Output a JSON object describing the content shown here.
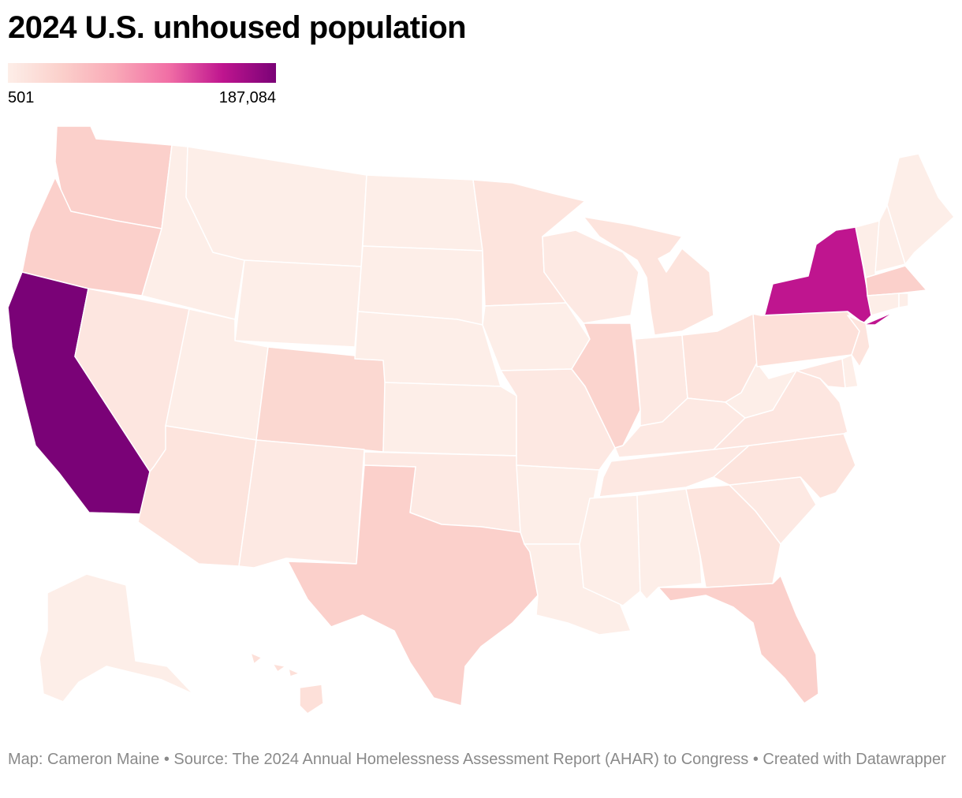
{
  "title": "2024 U.S. unhoused population",
  "legend": {
    "min_label": "501",
    "max_label": "187,084",
    "min_value": 501,
    "max_value": 187084,
    "colors": [
      "#fdeee8",
      "#fbd0cb",
      "#f9a9b7",
      "#f16ea5",
      "#bf158f",
      "#7a0277"
    ]
  },
  "footer": {
    "text": "Map: Cameron Maine • Source: The 2024 Annual Homelessness Assessment Report (AHAR) to Congress  • Created with Datawrapper"
  },
  "states": [
    {
      "name": "Washington",
      "color": "#fbd0cb"
    },
    {
      "name": "Oregon",
      "color": "#fbd0cb"
    },
    {
      "name": "California",
      "color": "#7a0277"
    },
    {
      "name": "Nevada",
      "color": "#fde6e0"
    },
    {
      "name": "Idaho",
      "color": "#fdeee8"
    },
    {
      "name": "Montana",
      "color": "#fdeee8"
    },
    {
      "name": "Wyoming",
      "color": "#fdeee8"
    },
    {
      "name": "Utah",
      "color": "#fdeee8"
    },
    {
      "name": "Colorado",
      "color": "#fbd8d1"
    },
    {
      "name": "Arizona",
      "color": "#fde4dd"
    },
    {
      "name": "New Mexico",
      "color": "#fde9e3"
    },
    {
      "name": "North Dakota",
      "color": "#fdeee8"
    },
    {
      "name": "South Dakota",
      "color": "#fdeee8"
    },
    {
      "name": "Nebraska",
      "color": "#fdeee8"
    },
    {
      "name": "Kansas",
      "color": "#fdeee8"
    },
    {
      "name": "Oklahoma",
      "color": "#fde9e3"
    },
    {
      "name": "Texas",
      "color": "#fbd0cb"
    },
    {
      "name": "Minnesota",
      "color": "#fde4dd"
    },
    {
      "name": "Iowa",
      "color": "#fdeee8"
    },
    {
      "name": "Missouri",
      "color": "#fde8e2"
    },
    {
      "name": "Arkansas",
      "color": "#fdeee8"
    },
    {
      "name": "Louisiana",
      "color": "#fdeee8"
    },
    {
      "name": "Wisconsin",
      "color": "#fde9e3"
    },
    {
      "name": "Illinois",
      "color": "#fbd4ce"
    },
    {
      "name": "Michigan",
      "color": "#fde4dd"
    },
    {
      "name": "Indiana",
      "color": "#fde9e3"
    },
    {
      "name": "Ohio",
      "color": "#fde4dd"
    },
    {
      "name": "Kentucky",
      "color": "#fde9e3"
    },
    {
      "name": "Tennessee",
      "color": "#fde8e2"
    },
    {
      "name": "Mississippi",
      "color": "#fdeee8"
    },
    {
      "name": "Alabama",
      "color": "#fdeee8"
    },
    {
      "name": "Georgia",
      "color": "#fde4dd"
    },
    {
      "name": "Florida",
      "color": "#fbd0cb"
    },
    {
      "name": "South Carolina",
      "color": "#fde9e3"
    },
    {
      "name": "North Carolina",
      "color": "#fde4dd"
    },
    {
      "name": "Virginia",
      "color": "#fde6e0"
    },
    {
      "name": "West Virginia",
      "color": "#fdeee8"
    },
    {
      "name": "Pennsylvania",
      "color": "#fde0d9"
    },
    {
      "name": "New York",
      "color": "#bf158f"
    },
    {
      "name": "Vermont",
      "color": "#fdeee8"
    },
    {
      "name": "New Hampshire",
      "color": "#fdeee8"
    },
    {
      "name": "Maine",
      "color": "#fdeee8"
    },
    {
      "name": "Massachusetts",
      "color": "#fbd0cb"
    },
    {
      "name": "Connecticut",
      "color": "#fdeee8"
    },
    {
      "name": "Rhode Island",
      "color": "#fdeee8"
    },
    {
      "name": "New Jersey",
      "color": "#fde4dd"
    },
    {
      "name": "Delaware",
      "color": "#fdeee8"
    },
    {
      "name": "Maryland",
      "color": "#fde6e0"
    },
    {
      "name": "Alaska",
      "color": "#fdeee8"
    },
    {
      "name": "Hawaii",
      "color": "#fde0d9"
    }
  ]
}
